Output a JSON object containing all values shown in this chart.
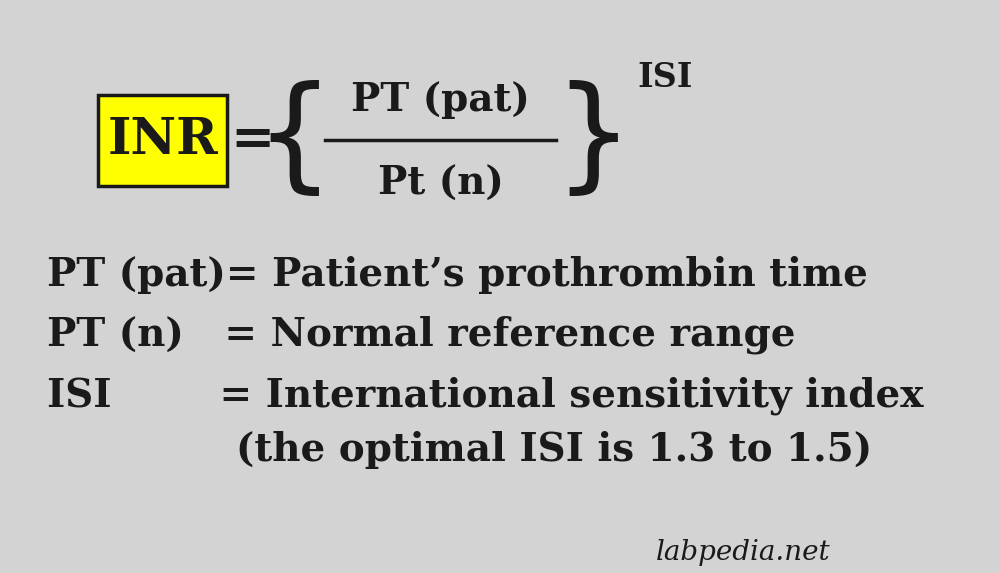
{
  "bg_color": "#d3d3d3",
  "text_color": "#1a1a1a",
  "yellow_color": "#ffff00",
  "inr_label": "INR",
  "equals_sign": "=",
  "numerator": "PT (pat)",
  "denominator": "Pt (n)",
  "exponent": "ISI",
  "line1": "PT (pat)= Patient’s prothrombin time",
  "line2": "PT (n)   = Normal reference range",
  "line3": "ISI        = International sensitivity index",
  "line4": "              (the optimal ISI is 1.3 to 1.5)",
  "watermark": "labpedia.net",
  "title_fontsize": 32,
  "body_fontsize": 28,
  "small_fontsize": 22
}
